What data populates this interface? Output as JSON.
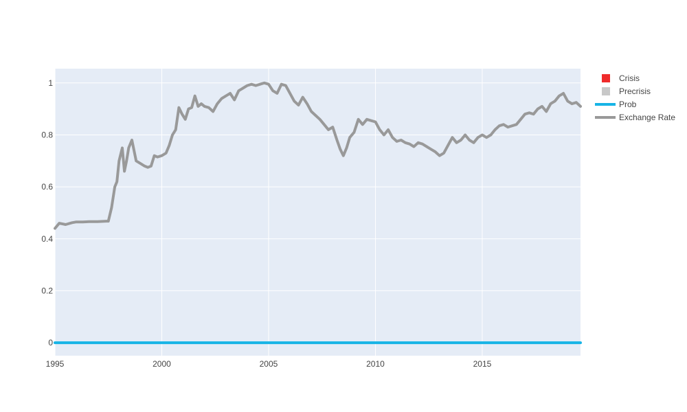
{
  "chart_data": {
    "type": "line",
    "title": "",
    "xlabel": "",
    "ylabel": "",
    "xlim": [
      1995.0,
      2019.6
    ],
    "ylim": [
      -0.05,
      1.055
    ],
    "x_ticks": [
      1995,
      2000,
      2005,
      2010,
      2015
    ],
    "x_tick_labels": [
      "1995",
      "2000",
      "2005",
      "2010",
      "2015"
    ],
    "y_ticks": [
      0,
      0.2,
      0.4,
      0.6,
      0.8,
      1
    ],
    "y_tick_labels": [
      "0",
      "0.2",
      "0.4",
      "0.6",
      "0.8",
      "1"
    ],
    "grid": true,
    "legend_position": "top-right outside",
    "plot_background": "#e5ecf6",
    "series": [
      {
        "name": "Crisis",
        "kind": "area",
        "color": "#ef2b2b",
        "x": [],
        "y": []
      },
      {
        "name": "Precrisis",
        "kind": "area",
        "color": "#c8c8c8",
        "x": [],
        "y": []
      },
      {
        "name": "Prob",
        "kind": "line",
        "color": "#17b4e6",
        "x": [
          1995.0,
          2019.6
        ],
        "y": [
          0,
          0
        ]
      },
      {
        "name": "Exchange Rate",
        "kind": "line",
        "color": "#999999",
        "x": [
          1995.0,
          1995.2,
          1995.5,
          1995.8,
          1996.0,
          1996.3,
          1996.6,
          1997.0,
          1997.4,
          1997.5,
          1997.65,
          1997.8,
          1997.9,
          1998.0,
          1998.15,
          1998.25,
          1998.35,
          1998.45,
          1998.6,
          1998.8,
          1999.0,
          1999.2,
          1999.35,
          1999.5,
          1999.65,
          1999.8,
          2000.0,
          2000.2,
          2000.35,
          2000.5,
          2000.65,
          2000.8,
          2000.95,
          2001.1,
          2001.25,
          2001.4,
          2001.55,
          2001.7,
          2001.85,
          2002.0,
          2002.2,
          2002.4,
          2002.6,
          2002.8,
          2003.0,
          2003.2,
          2003.4,
          2003.6,
          2003.8,
          2004.0,
          2004.2,
          2004.4,
          2004.6,
          2004.8,
          2005.0,
          2005.2,
          2005.4,
          2005.6,
          2005.8,
          2006.0,
          2006.2,
          2006.4,
          2006.6,
          2006.8,
          2007.0,
          2007.2,
          2007.4,
          2007.6,
          2007.8,
          2008.0,
          2008.2,
          2008.35,
          2008.5,
          2008.65,
          2008.8,
          2009.0,
          2009.2,
          2009.4,
          2009.6,
          2009.8,
          2010.0,
          2010.2,
          2010.4,
          2010.6,
          2010.8,
          2011.0,
          2011.2,
          2011.4,
          2011.6,
          2011.8,
          2012.0,
          2012.2,
          2012.4,
          2012.6,
          2012.8,
          2013.0,
          2013.2,
          2013.4,
          2013.6,
          2013.8,
          2014.0,
          2014.2,
          2014.4,
          2014.6,
          2014.8,
          2015.0,
          2015.2,
          2015.4,
          2015.6,
          2015.8,
          2016.0,
          2016.2,
          2016.4,
          2016.6,
          2016.8,
          2017.0,
          2017.2,
          2017.4,
          2017.6,
          2017.8,
          2018.0,
          2018.2,
          2018.4,
          2018.6,
          2018.8,
          2019.0,
          2019.2,
          2019.4,
          2019.6
        ],
        "y": [
          0.44,
          0.46,
          0.455,
          0.462,
          0.465,
          0.465,
          0.466,
          0.466,
          0.468,
          0.468,
          0.52,
          0.6,
          0.62,
          0.7,
          0.75,
          0.66,
          0.7,
          0.75,
          0.78,
          0.7,
          0.69,
          0.68,
          0.675,
          0.68,
          0.72,
          0.715,
          0.72,
          0.73,
          0.76,
          0.8,
          0.82,
          0.905,
          0.88,
          0.86,
          0.9,
          0.905,
          0.95,
          0.91,
          0.92,
          0.91,
          0.905,
          0.89,
          0.92,
          0.94,
          0.95,
          0.96,
          0.935,
          0.97,
          0.98,
          0.99,
          0.995,
          0.99,
          0.995,
          1.0,
          0.995,
          0.97,
          0.96,
          0.995,
          0.99,
          0.96,
          0.93,
          0.915,
          0.945,
          0.92,
          0.89,
          0.875,
          0.86,
          0.84,
          0.82,
          0.83,
          0.78,
          0.745,
          0.72,
          0.75,
          0.79,
          0.81,
          0.86,
          0.84,
          0.86,
          0.855,
          0.85,
          0.82,
          0.8,
          0.82,
          0.79,
          0.775,
          0.78,
          0.77,
          0.765,
          0.755,
          0.77,
          0.765,
          0.755,
          0.745,
          0.735,
          0.72,
          0.73,
          0.76,
          0.79,
          0.77,
          0.78,
          0.8,
          0.78,
          0.77,
          0.79,
          0.8,
          0.79,
          0.8,
          0.82,
          0.835,
          0.84,
          0.83,
          0.835,
          0.84,
          0.86,
          0.88,
          0.885,
          0.88,
          0.9,
          0.91,
          0.89,
          0.92,
          0.93,
          0.95,
          0.96,
          0.93,
          0.92,
          0.925,
          0.91
        ]
      }
    ]
  }
}
